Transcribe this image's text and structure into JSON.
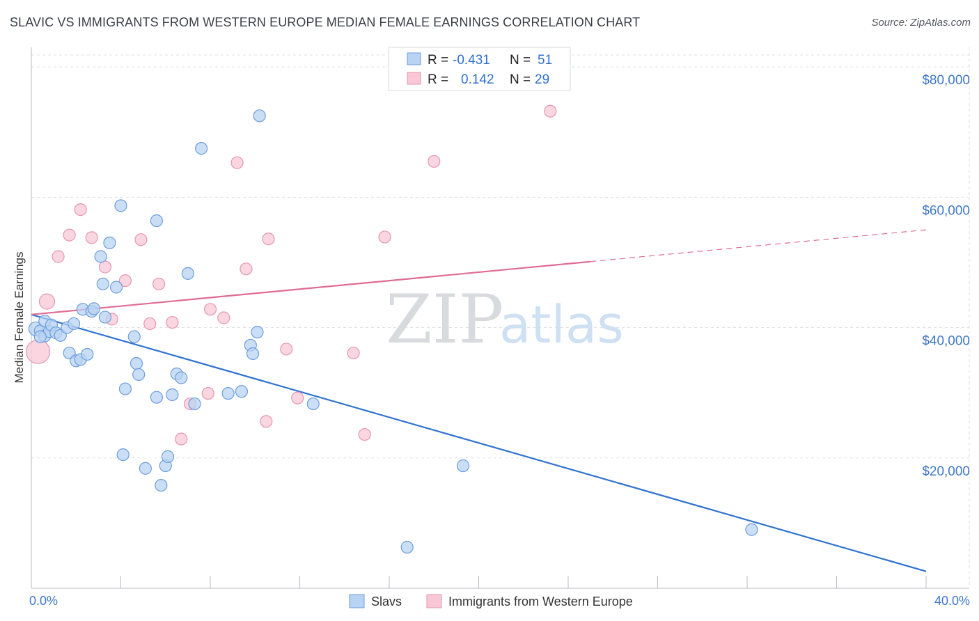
{
  "title": "SLAVIC VS IMMIGRANTS FROM WESTERN EUROPE MEDIAN FEMALE EARNINGS CORRELATION CHART",
  "source": "Source: ZipAtlas.com",
  "watermark": {
    "zip": "ZIP",
    "atlas": "atlas"
  },
  "colors": {
    "slavs_fill": "#b8d3f3",
    "slavs_stroke": "#6d9edc",
    "slavs_line": "#2f72cf",
    "immig_fill": "#f8c8d7",
    "immig_stroke": "#e596b2",
    "immig_line": "#e06b93",
    "grid": "#dcdfe5",
    "axis_text": "#3e78c8"
  },
  "legend": {
    "rows": [
      {
        "r_label": "R =",
        "r_value": "-0.431",
        "n_label": "N =",
        "n_value": "51"
      },
      {
        "r_label": "R =",
        "r_value": "0.142",
        "n_label": "N =",
        "n_value": "29"
      }
    ]
  },
  "chart_data": {
    "type": "scatter",
    "title": "SLAVIC VS IMMIGRANTS FROM WESTERN EUROPE MEDIAN FEMALE EARNINGS CORRELATION CHART",
    "xlabel": "",
    "ylabel": "Median Female Earnings",
    "xlim": [
      0,
      40
    ],
    "ylim": [
      0,
      83000
    ],
    "x_tick_labels": [
      "0.0%",
      "40.0%"
    ],
    "y_ticks": [
      20000,
      40000,
      60000,
      80000
    ],
    "y_tick_labels": [
      "$20,000",
      "$40,000",
      "$60,000",
      "$80,000"
    ],
    "grid": "horizontal dashed",
    "legend_placement": "top-center",
    "series": [
      {
        "name": "Slavs",
        "points": [
          [
            0.2,
            39800
          ],
          [
            0.4,
            39500
          ],
          [
            0.6,
            41000
          ],
          [
            0.6,
            38700
          ],
          [
            0.8,
            39400
          ],
          [
            0.9,
            40400
          ],
          [
            1.1,
            39200
          ],
          [
            1.3,
            38800
          ],
          [
            1.6,
            40000
          ],
          [
            1.7,
            36100
          ],
          [
            1.9,
            40600
          ],
          [
            2.0,
            34900
          ],
          [
            2.2,
            35100
          ],
          [
            2.5,
            35900
          ],
          [
            2.3,
            42800
          ],
          [
            2.7,
            42500
          ],
          [
            2.8,
            42900
          ],
          [
            3.1,
            50900
          ],
          [
            3.2,
            46700
          ],
          [
            3.3,
            41600
          ],
          [
            3.5,
            53000
          ],
          [
            3.8,
            46200
          ],
          [
            4.0,
            58700
          ],
          [
            4.1,
            20500
          ],
          [
            4.2,
            30600
          ],
          [
            4.6,
            38600
          ],
          [
            4.7,
            34500
          ],
          [
            4.8,
            32800
          ],
          [
            5.1,
            18400
          ],
          [
            5.6,
            56400
          ],
          [
            5.6,
            29300
          ],
          [
            5.8,
            15800
          ],
          [
            6.0,
            18800
          ],
          [
            6.1,
            20200
          ],
          [
            6.3,
            29700
          ],
          [
            6.5,
            32900
          ],
          [
            6.7,
            32300
          ],
          [
            7.0,
            48300
          ],
          [
            7.3,
            28300
          ],
          [
            7.6,
            67500
          ],
          [
            8.8,
            29900
          ],
          [
            9.4,
            30200
          ],
          [
            9.8,
            37300
          ],
          [
            9.9,
            36000
          ],
          [
            10.1,
            39300
          ],
          [
            10.2,
            72500
          ],
          [
            12.6,
            28300
          ],
          [
            16.8,
            6300
          ],
          [
            19.3,
            18800
          ],
          [
            32.2,
            9000
          ],
          [
            0.4,
            38600
          ]
        ],
        "trend": {
          "x": [
            0,
            40
          ],
          "y": [
            42000,
            2600
          ]
        }
      },
      {
        "name": "Immigrants from Western Europe",
        "points": [
          [
            0.3,
            36300
          ],
          [
            0.7,
            44000
          ],
          [
            1.2,
            50900
          ],
          [
            1.7,
            54200
          ],
          [
            2.2,
            58100
          ],
          [
            2.7,
            53800
          ],
          [
            3.3,
            49300
          ],
          [
            3.6,
            41300
          ],
          [
            4.2,
            47200
          ],
          [
            4.9,
            53500
          ],
          [
            5.3,
            40600
          ],
          [
            5.7,
            46700
          ],
          [
            6.3,
            40800
          ],
          [
            6.7,
            22900
          ],
          [
            7.1,
            28300
          ],
          [
            7.9,
            29900
          ],
          [
            8.0,
            42800
          ],
          [
            8.6,
            41500
          ],
          [
            9.2,
            65300
          ],
          [
            9.6,
            49000
          ],
          [
            10.5,
            25600
          ],
          [
            10.6,
            53600
          ],
          [
            11.4,
            36700
          ],
          [
            11.9,
            29200
          ],
          [
            14.4,
            36100
          ],
          [
            14.9,
            23600
          ],
          [
            15.8,
            53900
          ],
          [
            18.0,
            65500
          ],
          [
            23.2,
            73200
          ]
        ],
        "trend": {
          "x": [
            0,
            40
          ],
          "y": [
            42000,
            55000
          ],
          "solid_until_x": 25
        }
      }
    ]
  },
  "bottom_legend": [
    {
      "label": "Slavs"
    },
    {
      "label": "Immigrants from Western Europe"
    }
  ]
}
